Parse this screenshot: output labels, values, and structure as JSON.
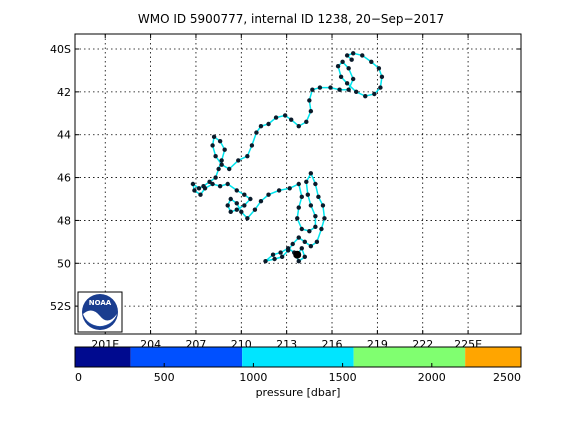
{
  "chart_data": {
    "type": "scatter",
    "title": "WMO ID 5900777, internal ID 1238, 20−Sep−2017",
    "xlabel": "",
    "ylabel": "",
    "xlim": [
      199,
      228.5
    ],
    "ylim": [
      -53.3,
      -39.3
    ],
    "grid": true,
    "x_ticks": [
      201,
      204,
      207,
      210,
      213,
      216,
      219,
      222,
      225
    ],
    "x_tick_labels": [
      "201E",
      "204",
      "207",
      "210",
      "213",
      "216",
      "219",
      "222",
      "225E"
    ],
    "y_ticks": [
      -40,
      -42,
      -44,
      -46,
      -48,
      -50,
      -52
    ],
    "y_tick_labels": [
      "40S",
      "42",
      "44",
      "46",
      "48",
      "50",
      "52S"
    ],
    "track_color": "#00e5ee",
    "point_color": "#0a1a2a",
    "end_marker": {
      "lon": 213.7,
      "lat": -49.6
    },
    "series": [
      {
        "values": [
          [
            217.3,
            -40.5
          ],
          [
            217.0,
            -40.3
          ],
          [
            217.4,
            -40.2
          ],
          [
            218.0,
            -40.3
          ],
          [
            218.6,
            -40.6
          ],
          [
            219.1,
            -40.9
          ],
          [
            219.3,
            -41.3
          ],
          [
            219.2,
            -41.8
          ],
          [
            218.8,
            -42.1
          ],
          [
            218.2,
            -42.2
          ],
          [
            217.6,
            -42.0
          ],
          [
            217.0,
            -41.6
          ],
          [
            216.6,
            -41.3
          ],
          [
            216.4,
            -40.8
          ],
          [
            216.7,
            -40.6
          ],
          [
            217.1,
            -40.9
          ],
          [
            217.4,
            -41.4
          ],
          [
            217.1,
            -41.9
          ],
          [
            216.5,
            -41.9
          ],
          [
            215.9,
            -41.8
          ],
          [
            215.2,
            -41.8
          ],
          [
            214.7,
            -41.9
          ],
          [
            214.5,
            -42.4
          ],
          [
            214.6,
            -42.9
          ],
          [
            214.3,
            -43.4
          ],
          [
            213.8,
            -43.6
          ],
          [
            213.3,
            -43.3
          ],
          [
            212.9,
            -43.1
          ],
          [
            212.3,
            -43.2
          ],
          [
            211.8,
            -43.5
          ],
          [
            211.3,
            -43.6
          ],
          [
            211.0,
            -43.9
          ],
          [
            210.7,
            -44.5
          ],
          [
            210.4,
            -45.0
          ],
          [
            209.8,
            -45.2
          ],
          [
            209.2,
            -45.6
          ],
          [
            208.7,
            -45.4
          ],
          [
            208.3,
            -45.0
          ],
          [
            208.1,
            -44.5
          ],
          [
            208.2,
            -44.1
          ],
          [
            208.6,
            -44.3
          ],
          [
            208.9,
            -44.7
          ],
          [
            208.7,
            -45.2
          ],
          [
            208.5,
            -45.6
          ],
          [
            208.3,
            -46.0
          ],
          [
            207.9,
            -46.2
          ],
          [
            207.5,
            -46.4
          ],
          [
            207.2,
            -46.5
          ],
          [
            206.8,
            -46.3
          ],
          [
            206.9,
            -46.6
          ],
          [
            207.3,
            -46.8
          ],
          [
            207.6,
            -46.5
          ],
          [
            208.1,
            -46.3
          ],
          [
            208.6,
            -46.4
          ],
          [
            209.1,
            -46.3
          ],
          [
            209.7,
            -46.6
          ],
          [
            210.2,
            -46.8
          ],
          [
            210.6,
            -47.0
          ],
          [
            210.2,
            -47.3
          ],
          [
            209.7,
            -47.5
          ],
          [
            209.3,
            -47.6
          ],
          [
            209.1,
            -47.3
          ],
          [
            209.3,
            -47.0
          ],
          [
            209.7,
            -47.2
          ],
          [
            210.0,
            -47.6
          ],
          [
            210.4,
            -47.9
          ],
          [
            210.9,
            -47.5
          ],
          [
            211.3,
            -47.1
          ],
          [
            211.8,
            -46.8
          ],
          [
            212.5,
            -46.6
          ],
          [
            213.2,
            -46.5
          ],
          [
            213.8,
            -46.3
          ],
          [
            214.0,
            -46.9
          ],
          [
            213.8,
            -47.4
          ],
          [
            213.7,
            -47.9
          ],
          [
            214.0,
            -48.4
          ],
          [
            214.5,
            -48.5
          ],
          [
            214.9,
            -48.3
          ],
          [
            214.9,
            -47.8
          ],
          [
            214.6,
            -47.3
          ],
          [
            214.4,
            -46.8
          ],
          [
            214.3,
            -46.2
          ],
          [
            214.6,
            -45.8
          ],
          [
            214.9,
            -46.3
          ],
          [
            215.1,
            -46.9
          ],
          [
            215.4,
            -47.3
          ],
          [
            215.5,
            -47.9
          ],
          [
            215.3,
            -48.4
          ],
          [
            215.0,
            -49.0
          ],
          [
            214.6,
            -49.2
          ],
          [
            214.2,
            -49.0
          ],
          [
            213.8,
            -48.8
          ],
          [
            213.4,
            -49.1
          ],
          [
            213.1,
            -49.4
          ],
          [
            212.7,
            -49.7
          ],
          [
            212.2,
            -49.8
          ],
          [
            211.6,
            -49.9
          ],
          [
            212.1,
            -49.6
          ],
          [
            212.6,
            -49.5
          ],
          [
            213.1,
            -49.3
          ],
          [
            213.5,
            -49.5
          ],
          [
            213.8,
            -49.9
          ],
          [
            214.2,
            -49.7
          ],
          [
            214.0,
            -49.3
          ],
          [
            213.7,
            -49.6
          ]
        ]
      }
    ]
  },
  "logo_text": "NOAA",
  "colorbar": {
    "label": "pressure [dbar]",
    "range": [
      0,
      2500
    ],
    "tick_values": [
      0,
      500,
      1000,
      1500,
      2000,
      2500
    ],
    "tick_labels": [
      "0",
      "500",
      "1000",
      "1500",
      "2000",
      "2500"
    ],
    "bands": [
      {
        "from": 0,
        "to": 312,
        "color": "#000a8f"
      },
      {
        "from": 312,
        "to": 937,
        "color": "#0050ff"
      },
      {
        "from": 937,
        "to": 1562,
        "color": "#00e5ff"
      },
      {
        "from": 1562,
        "to": 2187,
        "color": "#80ff70"
      },
      {
        "from": 2187,
        "to": 2500,
        "color": "#ffa500"
      }
    ]
  }
}
